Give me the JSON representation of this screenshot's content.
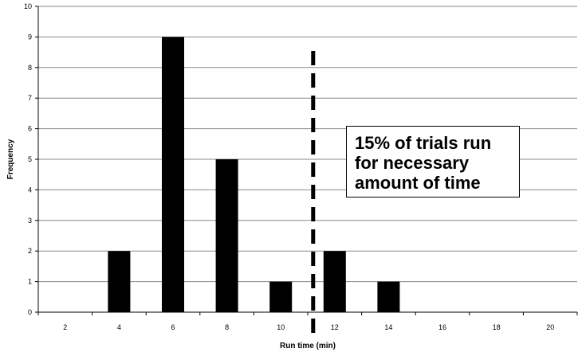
{
  "chart_data": {
    "type": "bar",
    "title": "",
    "xlabel": "Run time (min)",
    "ylabel": "Frequency",
    "categories": [
      "2",
      "4",
      "6",
      "8",
      "10",
      "12",
      "14",
      "16",
      "18",
      "20"
    ],
    "values": [
      0,
      2,
      9,
      5,
      1,
      2,
      1,
      0,
      0,
      0
    ],
    "ylim": [
      0,
      10
    ],
    "yticks": [
      "0",
      "1",
      "2",
      "3",
      "4",
      "5",
      "6",
      "7",
      "8",
      "9",
      "10"
    ],
    "grid": true,
    "bar_color": "#000000",
    "threshold_line": {
      "style": "dashed",
      "x": 11.2,
      "color": "#000000"
    },
    "annotation": {
      "lines": [
        "15% of trials run",
        "for necessary",
        "amount of time"
      ]
    }
  }
}
